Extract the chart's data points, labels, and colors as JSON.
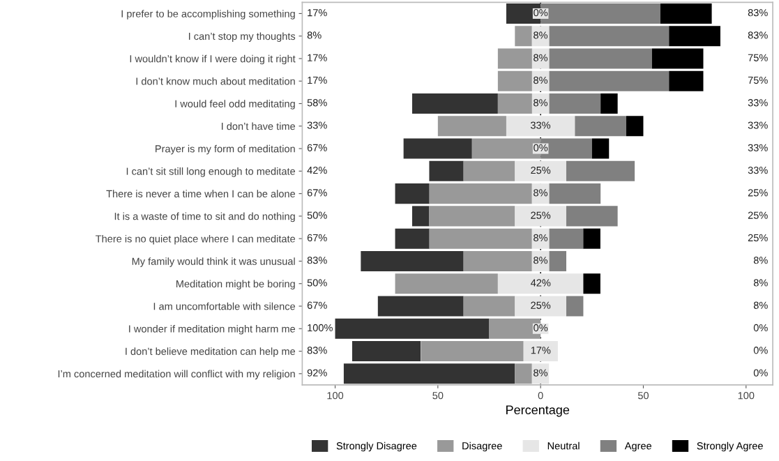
{
  "chart_data": {
    "type": "bar",
    "orientation": "horizontal",
    "xlabel": "Percentage",
    "categories": [
      "I prefer to be accomplishing something",
      "I can’t stop my thoughts",
      "I wouldn’t know if I were doing it right",
      "I don’t know much about meditation",
      "I would feel odd meditating",
      "I don’t have time",
      "Prayer is my form of meditation",
      "I can’t sit still long enough to meditate",
      "There is never a time when I can be alone",
      "It is a waste of time to sit and do nothing",
      "There is no quiet place where I can meditate",
      "My family would think it was unusual",
      "Meditation might be boring",
      "I am uncomfortable with silence",
      "I wonder if meditation might harm me",
      "I don’t believe meditation can help me",
      "I’m concerned meditation will conflict with my religion"
    ],
    "series": [
      {
        "name": "Strongly Disagree",
        "color": "#333333",
        "base": [
          -16.7,
          null,
          null,
          null,
          -62.5,
          null,
          -66.7,
          -54.2,
          -70.8,
          -62.5,
          -70.8,
          -87.5,
          null,
          -79.2,
          -100,
          -91.7,
          -95.8
        ],
        "values": [
          16.7,
          null,
          null,
          null,
          41.7,
          null,
          33.3,
          16.7,
          16.7,
          8.3,
          16.7,
          50,
          null,
          41.7,
          75,
          33.3,
          83.3
        ]
      },
      {
        "name": "Disagree",
        "color": "#999999",
        "base": [
          null,
          -12.5,
          -20.8,
          -20.8,
          -20.8,
          -50,
          -33.3,
          -37.5,
          -54.2,
          -54.2,
          -54.2,
          -37.5,
          -70.8,
          -37.5,
          -25,
          -58.3,
          -12.5
        ],
        "values": [
          null,
          8.3,
          16.7,
          16.7,
          16.7,
          33.3,
          33.3,
          25,
          50,
          41.7,
          50,
          33.3,
          50,
          25,
          25,
          50,
          8.3
        ]
      },
      {
        "name": "Neutral",
        "color": "#e6e6e6",
        "base": [
          null,
          -4.2,
          -4.2,
          -4.2,
          -4.2,
          -16.7,
          null,
          -12.5,
          -4.2,
          -12.5,
          -4.2,
          -4.2,
          -20.8,
          -12.5,
          null,
          -8.3,
          -4.2
        ],
        "values": [
          null,
          8.3,
          8.3,
          8.3,
          8.3,
          33.3,
          null,
          25,
          8.3,
          25,
          8.3,
          8.3,
          41.7,
          25,
          null,
          16.7,
          8.3
        ],
        "value_labels": [
          "0%",
          "8%",
          "8%",
          "8%",
          "8%",
          "33%",
          "0%",
          "25%",
          "8%",
          "25%",
          "8%",
          "8%",
          "42%",
          "25%",
          "0%",
          "17%",
          "8%"
        ]
      },
      {
        "name": "Agree",
        "color": "#808080",
        "base": [
          0,
          4.2,
          4.2,
          4.2,
          4.2,
          16.7,
          0,
          12.5,
          4.2,
          12.5,
          4.2,
          4.2,
          null,
          12.5,
          null,
          null,
          null
        ],
        "values": [
          58.3,
          58.3,
          50,
          58.3,
          25,
          25,
          25,
          33.3,
          25,
          25,
          16.7,
          8.3,
          null,
          8.3,
          null,
          null,
          null
        ]
      },
      {
        "name": "Strongly Agree",
        "color": "#000000",
        "base": [
          58.3,
          62.5,
          54.2,
          62.5,
          29.2,
          41.7,
          25,
          null,
          null,
          null,
          20.8,
          null,
          20.8,
          null,
          null,
          null,
          null
        ],
        "values": [
          25,
          25,
          25,
          16.7,
          8.3,
          8.3,
          8.3,
          null,
          null,
          null,
          8.3,
          null,
          8.3,
          null,
          null,
          null,
          null
        ]
      }
    ],
    "annotations": [
      "17%",
      "8%",
      "17%",
      "17%",
      "58%",
      "33%",
      "67%",
      "42%",
      "67%",
      "50%",
      "67%",
      "83%",
      "50%",
      "67%",
      "100%",
      "83%",
      "92%",
      "83%",
      "83%",
      "75%",
      "75%",
      "33%",
      "33%",
      "33%",
      "33%",
      "25%",
      "25%",
      "25%",
      "8%",
      "8%",
      "8%",
      "0%",
      "0%",
      "0%"
    ],
    "xlim": [
      -116,
      113
    ],
    "xticks": [
      {
        "value": -100,
        "label": "100"
      },
      {
        "value": -50,
        "label": "50"
      },
      0,
      50,
      100
    ],
    "ref_lines": [
      {
        "axis": "x",
        "value": 0,
        "color": "#000000",
        "line_style": "dotted"
      }
    ],
    "grid": false,
    "legend": "bottom"
  }
}
